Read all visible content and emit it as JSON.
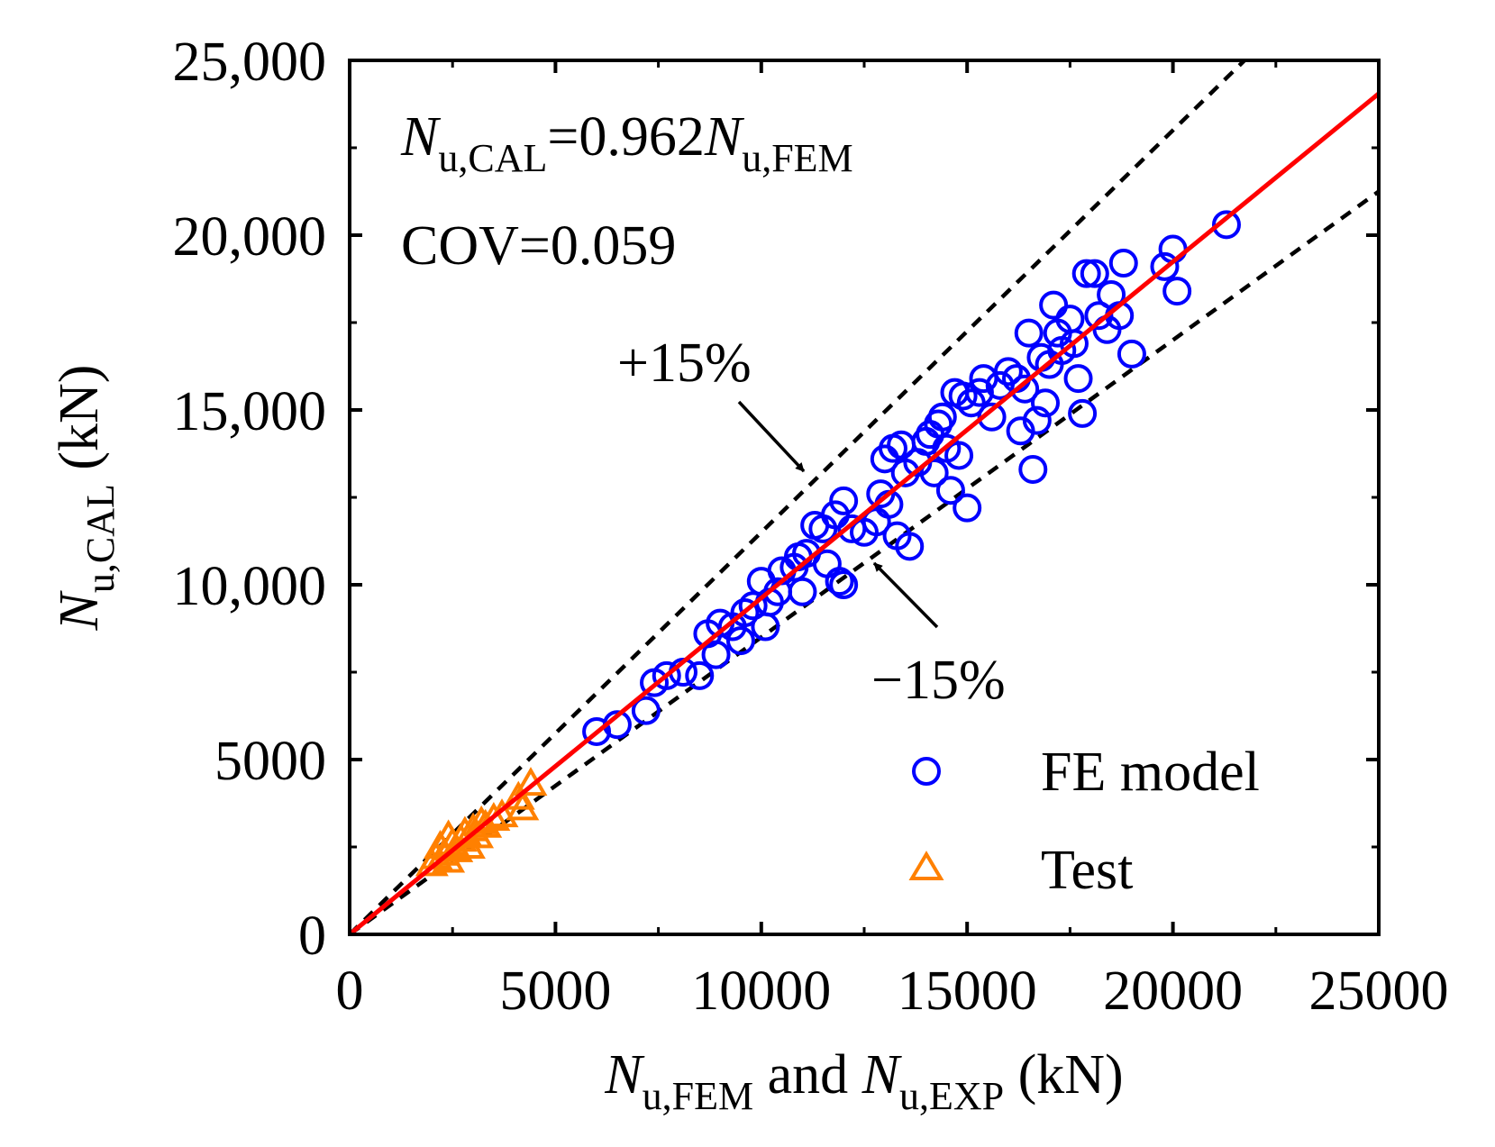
{
  "chart_data": {
    "type": "scatter",
    "xlim": [
      0,
      25000
    ],
    "ylim": [
      0,
      25000
    ],
    "x_ticks": [
      0,
      5000,
      10000,
      15000,
      20000,
      25000
    ],
    "x_tick_labels": [
      "0",
      "5000",
      "10000",
      "15000",
      "20000",
      "25000"
    ],
    "y_ticks": [
      0,
      5000,
      10000,
      15000,
      20000,
      25000
    ],
    "y_tick_labels": [
      "0",
      "5000",
      "10,000",
      "15,000",
      "20,000",
      "25,000"
    ],
    "xlabel": {
      "N": "N",
      "sub1": "u,FEM",
      "and": " and ",
      "sub2": "u,EXP",
      "unit": " (kN)"
    },
    "ylabel": {
      "N": "N",
      "sub": "u,CAL",
      "unit": " (kN)"
    },
    "annotations": {
      "eq_N": "N",
      "eq_sub1": "u,CAL",
      "eq_mid": "=0.962",
      "eq_sub2": "u,FEM",
      "cov": "COV=0.059",
      "plus": "+15%",
      "minus": "−15%"
    },
    "fit_line": {
      "slope": 0.962,
      "color": "#ff0000"
    },
    "bound_lines": [
      {
        "slope": 1.15
      },
      {
        "slope": 0.85
      }
    ],
    "legend": {
      "position": "bottom-right",
      "entries": [
        "FE model",
        "Test"
      ]
    },
    "colors": {
      "fe": "#0000ff",
      "test": "#ff8000",
      "fit": "#ff0000",
      "bounds": "#000000"
    },
    "series": [
      {
        "name": "FE model",
        "marker": "circle",
        "points": [
          [
            6000,
            5800
          ],
          [
            6500,
            6000
          ],
          [
            7200,
            6400
          ],
          [
            7400,
            7200
          ],
          [
            7700,
            7400
          ],
          [
            8100,
            7500
          ],
          [
            8500,
            7400
          ],
          [
            8700,
            8600
          ],
          [
            8900,
            8000
          ],
          [
            9000,
            8900
          ],
          [
            9300,
            8800
          ],
          [
            9500,
            8400
          ],
          [
            9600,
            9200
          ],
          [
            9800,
            9400
          ],
          [
            10000,
            10100
          ],
          [
            10100,
            8800
          ],
          [
            10200,
            9500
          ],
          [
            10400,
            9800
          ],
          [
            10500,
            10400
          ],
          [
            10800,
            10500
          ],
          [
            10900,
            10800
          ],
          [
            11000,
            9800
          ],
          [
            11100,
            10900
          ],
          [
            11300,
            11700
          ],
          [
            11500,
            11600
          ],
          [
            11600,
            10600
          ],
          [
            11800,
            12000
          ],
          [
            11900,
            10100
          ],
          [
            12000,
            10000
          ],
          [
            12000,
            12400
          ],
          [
            12200,
            11600
          ],
          [
            12500,
            11500
          ],
          [
            12800,
            11800
          ],
          [
            12900,
            12600
          ],
          [
            13000,
            13600
          ],
          [
            13100,
            12300
          ],
          [
            13200,
            13900
          ],
          [
            13300,
            11400
          ],
          [
            13400,
            14000
          ],
          [
            13500,
            13200
          ],
          [
            13600,
            11100
          ],
          [
            13800,
            13500
          ],
          [
            14000,
            14100
          ],
          [
            14100,
            14300
          ],
          [
            14200,
            13200
          ],
          [
            14300,
            14600
          ],
          [
            14400,
            14800
          ],
          [
            14500,
            13900
          ],
          [
            14600,
            12700
          ],
          [
            14700,
            15500
          ],
          [
            14800,
            13700
          ],
          [
            14900,
            15400
          ],
          [
            15000,
            12200
          ],
          [
            15100,
            15200
          ],
          [
            15300,
            15500
          ],
          [
            15400,
            15900
          ],
          [
            15600,
            14800
          ],
          [
            15800,
            15700
          ],
          [
            16000,
            16100
          ],
          [
            16200,
            15900
          ],
          [
            16300,
            14400
          ],
          [
            16400,
            15600
          ],
          [
            16500,
            17200
          ],
          [
            16600,
            13300
          ],
          [
            16700,
            14700
          ],
          [
            16800,
            16500
          ],
          [
            16900,
            15200
          ],
          [
            17000,
            16300
          ],
          [
            17100,
            18000
          ],
          [
            17200,
            17200
          ],
          [
            17300,
            16700
          ],
          [
            17500,
            17600
          ],
          [
            17600,
            16900
          ],
          [
            17700,
            15900
          ],
          [
            17800,
            14900
          ],
          [
            17900,
            18900
          ],
          [
            18100,
            18900
          ],
          [
            18200,
            17700
          ],
          [
            18400,
            17300
          ],
          [
            18500,
            18300
          ],
          [
            18700,
            17700
          ],
          [
            18800,
            19200
          ],
          [
            19000,
            16600
          ],
          [
            19800,
            19100
          ],
          [
            20000,
            19600
          ],
          [
            20100,
            18400
          ],
          [
            21300,
            20300
          ]
        ]
      },
      {
        "name": "Test",
        "marker": "triangle",
        "points": [
          [
            2000,
            2000
          ],
          [
            2100,
            2200
          ],
          [
            2200,
            2500
          ],
          [
            2300,
            2300
          ],
          [
            2400,
            2100
          ],
          [
            2400,
            2800
          ],
          [
            2500,
            2600
          ],
          [
            2600,
            2400
          ],
          [
            2700,
            2700
          ],
          [
            2800,
            2900
          ],
          [
            2900,
            2500
          ],
          [
            3000,
            3000
          ],
          [
            3100,
            2800
          ],
          [
            3200,
            3200
          ],
          [
            3300,
            3100
          ],
          [
            3500,
            3300
          ],
          [
            3700,
            3400
          ],
          [
            4100,
            3900
          ],
          [
            4200,
            3600
          ],
          [
            4400,
            4300
          ]
        ]
      }
    ]
  }
}
